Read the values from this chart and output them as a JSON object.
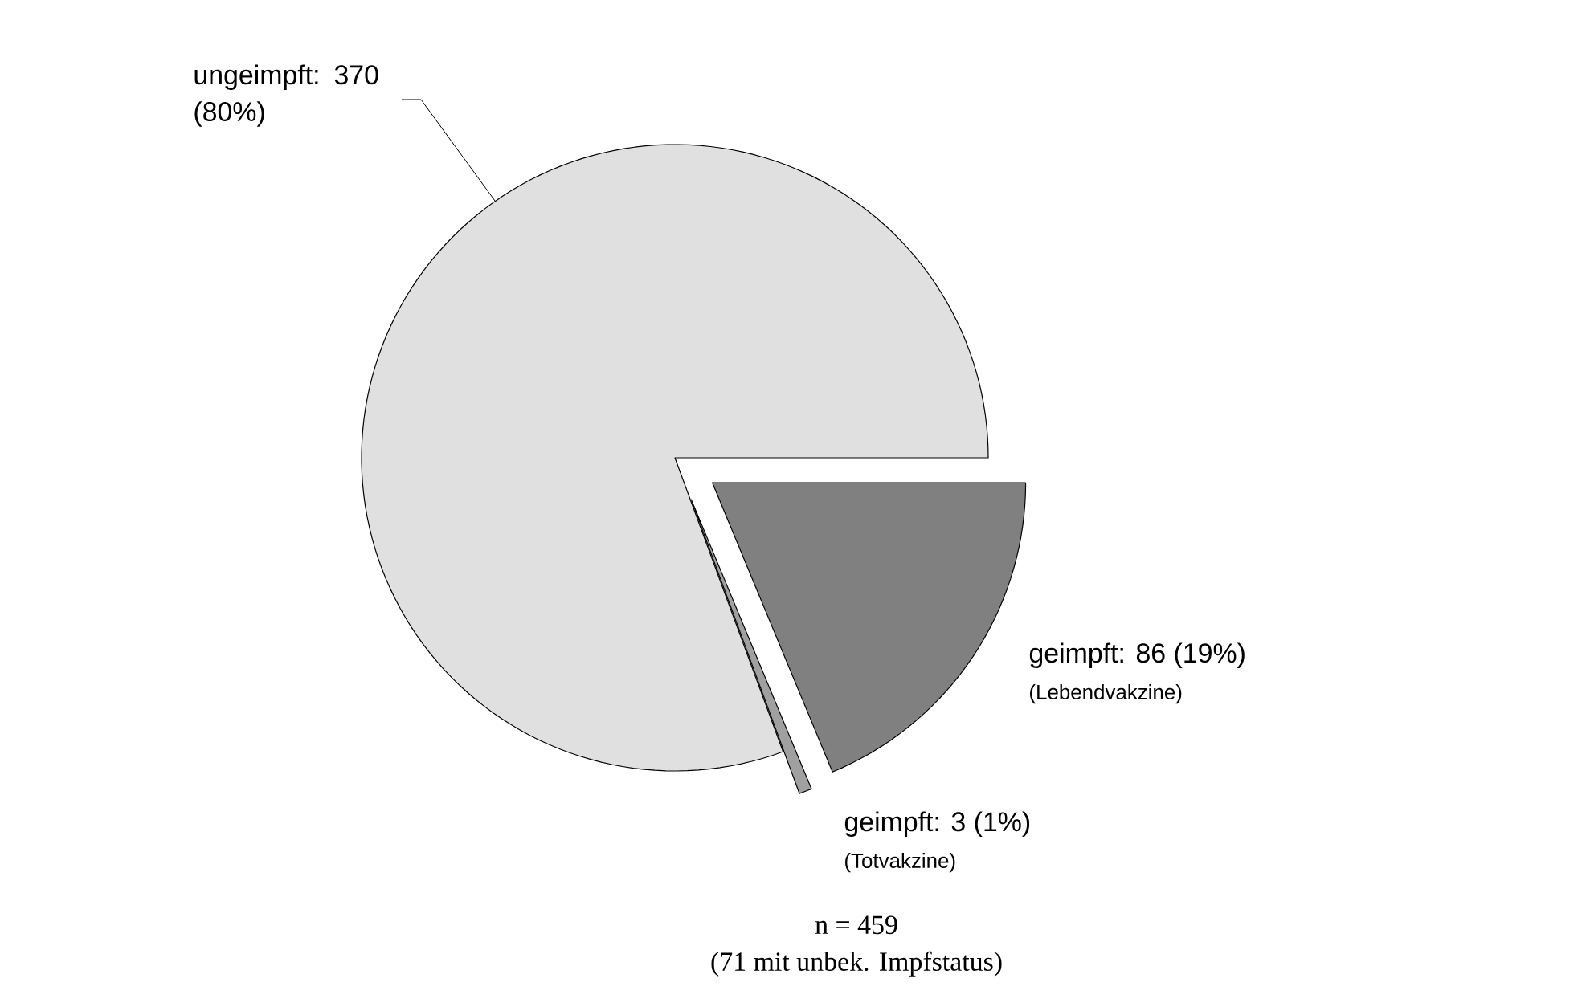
{
  "chart_data": {
    "type": "pie",
    "categories": [
      "ungeimpft: 370 (80%)",
      "geimpft: 86 (19%)",
      "geimpft: 3 (1%)"
    ],
    "values": [
      370,
      86,
      3
    ],
    "colors": [
      "#e0e0e0",
      "#808080",
      "#a0a0a0"
    ],
    "annotations": [
      "(Lebendvakzine)",
      "(Totvakzine)",
      "n = 459",
      "(71 mit unbek. Impfstatus)"
    ]
  }
}
